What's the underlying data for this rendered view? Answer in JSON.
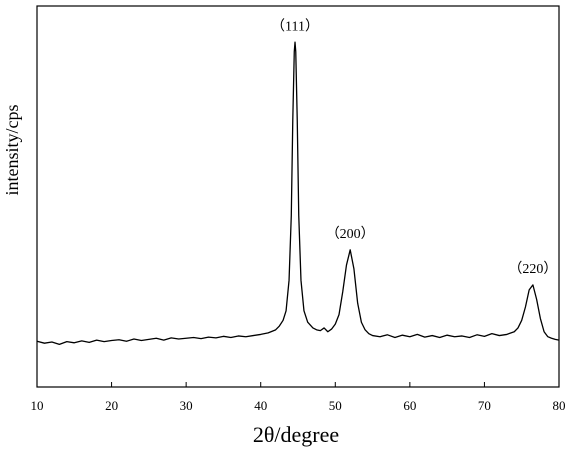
{
  "chart_data": {
    "type": "line",
    "x_label": "2θ/degree",
    "y_label": "intensity/cps",
    "color": "#000000",
    "xlim": [
      10,
      80
    ],
    "xticks": [
      10,
      20,
      30,
      40,
      50,
      60,
      70,
      80
    ],
    "ylim": [
      0,
      100
    ],
    "x": [
      10,
      11,
      12,
      13,
      14,
      15,
      16,
      17,
      18,
      19,
      20,
      21,
      22,
      23,
      24,
      25,
      26,
      27,
      28,
      29,
      30,
      31,
      32,
      33,
      34,
      35,
      36,
      37,
      38,
      39,
      40,
      41,
      42,
      42.5,
      43,
      43.4,
      43.8,
      44.1,
      44.3,
      44.5,
      44.6,
      44.7,
      44.9,
      45.1,
      45.4,
      45.8,
      46.3,
      47,
      47.5,
      48,
      48.5,
      49,
      49.5,
      50,
      50.5,
      51,
      51.5,
      52,
      52.5,
      53,
      53.5,
      54,
      54.5,
      55,
      56,
      57,
      58,
      59,
      60,
      61,
      62,
      63,
      64,
      65,
      66,
      67,
      68,
      69,
      70,
      71,
      72,
      73,
      74,
      74.5,
      75,
      75.5,
      76,
      76.5,
      77,
      77.5,
      78,
      78.5,
      79,
      79.5,
      80
    ],
    "values": [
      12.0,
      11.5,
      11.8,
      11.2,
      11.9,
      11.6,
      12.1,
      11.7,
      12.3,
      11.9,
      12.2,
      12.4,
      12.0,
      12.6,
      12.2,
      12.5,
      12.8,
      12.3,
      12.9,
      12.6,
      12.8,
      13.0,
      12.7,
      13.1,
      12.9,
      13.3,
      13.0,
      13.4,
      13.2,
      13.5,
      13.8,
      14.2,
      15.0,
      16.0,
      17.5,
      20,
      28,
      45,
      70,
      88,
      90.5,
      88,
      70,
      45,
      28,
      20,
      17,
      15.5,
      15,
      14.8,
      15.5,
      14.5,
      15.2,
      16.5,
      19,
      25,
      32,
      36,
      31,
      22,
      17,
      15,
      14,
      13.5,
      13.2,
      13.7,
      13.0,
      13.6,
      13.2,
      13.8,
      13.1,
      13.5,
      13.0,
      13.6,
      13.2,
      13.4,
      13.0,
      13.7,
      13.3,
      14.0,
      13.5,
      13.8,
      14.5,
      15.5,
      17.5,
      21,
      25.5,
      26.8,
      23,
      18,
      14.5,
      13.2,
      12.8,
      12.5,
      12.3
    ],
    "annotations": [
      {
        "text": "（111）",
        "x": 44.6
      },
      {
        "text": "（200）",
        "x": 52
      },
      {
        "text": "（220）",
        "x": 76.5
      }
    ]
  }
}
